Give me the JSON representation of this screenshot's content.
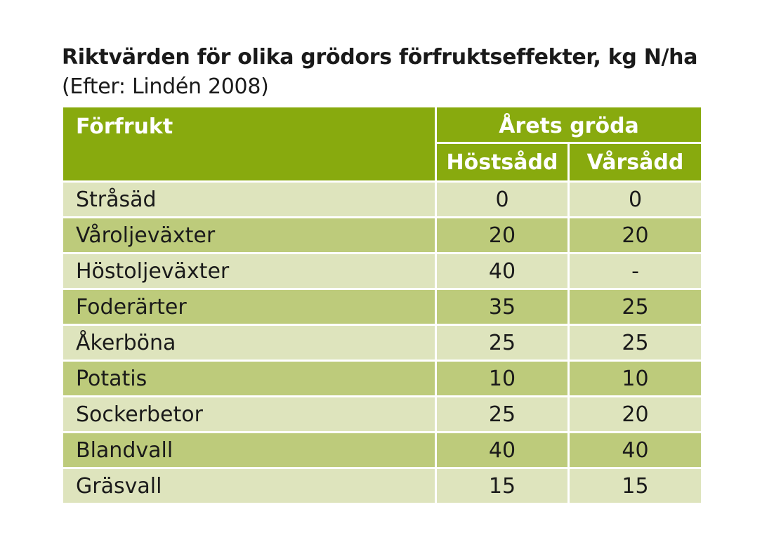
{
  "title": "Riktvärden för olika grödors förfruktseffekter, kg N/ha",
  "subtitle": "(Efter: Lindén 2008)",
  "table": {
    "col_header_first": "Förfrukt",
    "group_header": "Årets gröda",
    "sub_headers": [
      "Höstsådd",
      "Vårsådd"
    ],
    "rows": [
      {
        "name": "Stråsäd",
        "host": "0",
        "var": "0"
      },
      {
        "name": "Våroljeväxter",
        "host": "20",
        "var": "20"
      },
      {
        "name": "Höstoljeväxter",
        "host": "40",
        "var": "-"
      },
      {
        "name": "Foderärter",
        "host": "35",
        "var": "25"
      },
      {
        "name": "Åkerböna",
        "host": "25",
        "var": "25"
      },
      {
        "name": "Potatis",
        "host": "10",
        "var": "10"
      },
      {
        "name": "Sockerbetor",
        "host": "25",
        "var": "20"
      },
      {
        "name": "Blandvall",
        "host": "40",
        "var": "40"
      },
      {
        "name": "Gräsvall",
        "host": "15",
        "var": "15"
      }
    ]
  },
  "colors": {
    "header": "#88aa0e",
    "row_light": "#dee4bd",
    "row_dark": "#bdcb7b"
  }
}
